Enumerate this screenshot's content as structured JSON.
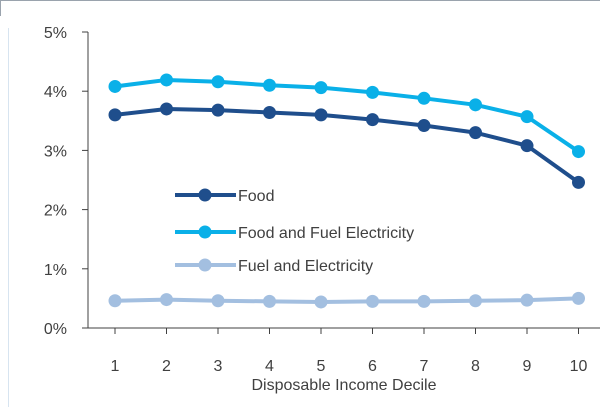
{
  "chart_data": {
    "type": "line",
    "title": "",
    "xlabel": "Disposable Income Decile",
    "ylabel": "",
    "x": [
      1,
      2,
      3,
      4,
      5,
      6,
      7,
      8,
      9,
      10
    ],
    "x_tick_labels": [
      "1",
      "2",
      "3",
      "4",
      "5",
      "6",
      "7",
      "8",
      "9",
      "10"
    ],
    "ylim": [
      0,
      5
    ],
    "y_ticks": [
      0,
      1,
      2,
      3,
      4,
      5
    ],
    "y_tick_labels": [
      "0%",
      "1%",
      "2%",
      "3%",
      "4%",
      "5%"
    ],
    "grid": false,
    "legend_position": "center-left",
    "series": [
      {
        "name": "Food",
        "color": "#1f4e8c",
        "values": [
          3.6,
          3.7,
          3.68,
          3.64,
          3.6,
          3.52,
          3.42,
          3.3,
          3.08,
          2.46
        ]
      },
      {
        "name": "Food and Fuel Electricity",
        "color": "#0ab0e8",
        "values": [
          4.08,
          4.19,
          4.16,
          4.1,
          4.06,
          3.98,
          3.88,
          3.77,
          3.57,
          2.98
        ]
      },
      {
        "name": "Fuel and Electricity",
        "color": "#a3bfe0",
        "values": [
          0.46,
          0.48,
          0.46,
          0.45,
          0.44,
          0.45,
          0.45,
          0.46,
          0.47,
          0.5
        ]
      }
    ]
  }
}
